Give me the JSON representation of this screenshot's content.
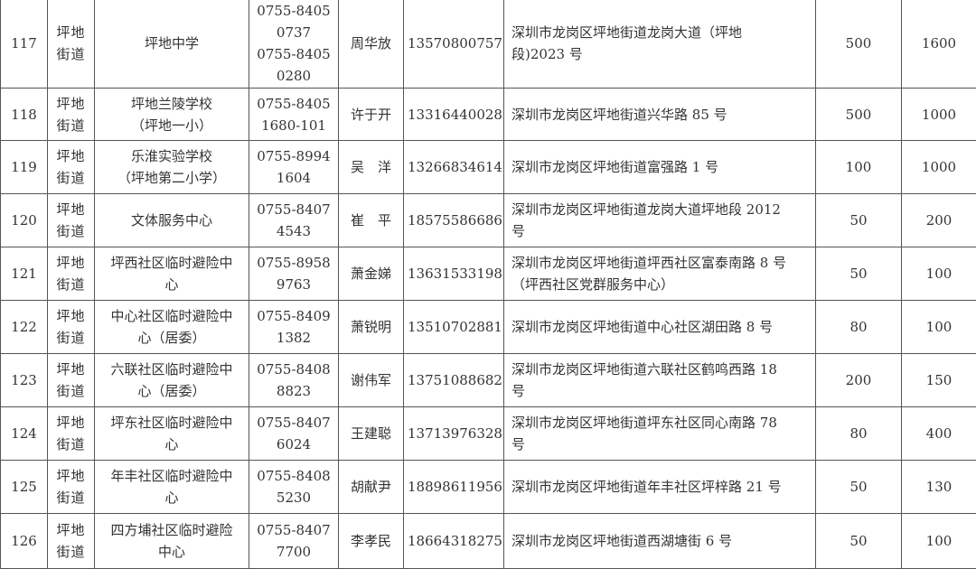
{
  "rows": [
    {
      "no": "117",
      "street": [
        "坪地",
        "街道"
      ],
      "name": [
        "坪地中学"
      ],
      "phone": [
        "0755-8405",
        "0737",
        "0755-8405",
        "0280"
      ],
      "person": "周华放",
      "mobile": "13570800757",
      "address": [
        "深圳市龙岗区坪地街道龙岗大道（坪地",
        "段)2023 号"
      ],
      "cap1": "500",
      "cap2": "1600"
    },
    {
      "no": "118",
      "street": [
        "坪地",
        "街道"
      ],
      "name": [
        "坪地兰陵学校",
        "（坪地一小）"
      ],
      "phone": [
        "0755-8405",
        "1680-101"
      ],
      "person": "许于开",
      "mobile": "13316440028",
      "address": [
        "深圳市龙岗区坪地街道兴华路 85 号"
      ],
      "cap1": "500",
      "cap2": "1000"
    },
    {
      "no": "119",
      "street": [
        "坪地",
        "街道"
      ],
      "name": [
        "乐淮实验学校",
        "（坪地第二小学）"
      ],
      "phone": [
        "0755-8994",
        "1604"
      ],
      "person": "吴　洋",
      "mobile": "13266834614",
      "address": [
        "深圳市龙岗区坪地街道富强路 1 号"
      ],
      "cap1": "100",
      "cap2": "1000"
    },
    {
      "no": "120",
      "street": [
        "坪地",
        "街道"
      ],
      "name": [
        "文体服务中心"
      ],
      "phone": [
        "0755-8407",
        "4543"
      ],
      "person": "崔　平",
      "mobile": "18575586686",
      "address": [
        "深圳市龙岗区坪地街道龙岗大道坪地段 2012",
        "号"
      ],
      "cap1": "50",
      "cap2": "200"
    },
    {
      "no": "121",
      "street": [
        "坪地",
        "街道"
      ],
      "name": [
        "坪西社区临时避险中",
        "心"
      ],
      "phone": [
        "0755-8958",
        "9763"
      ],
      "person": "萧金娣",
      "mobile": "13631533198",
      "address": [
        "深圳市龙岗区坪地街道坪西社区富泰南路 8 号",
        "（坪西社区党群服务中心）"
      ],
      "cap1": "50",
      "cap2": "100"
    },
    {
      "no": "122",
      "street": [
        "坪地",
        "街道"
      ],
      "name": [
        "中心社区临时避险中",
        "心（居委）"
      ],
      "phone": [
        "0755-8409",
        "1382"
      ],
      "person": "萧锐明",
      "mobile": "13510702881",
      "address": [
        "深圳市龙岗区坪地街道中心社区湖田路 8 号"
      ],
      "cap1": "80",
      "cap2": "100"
    },
    {
      "no": "123",
      "street": [
        "坪地",
        "街道"
      ],
      "name": [
        "六联社区临时避险中",
        "心（居委）"
      ],
      "phone": [
        "0755-8408",
        "8823"
      ],
      "person": "谢伟军",
      "mobile": "13751088682",
      "address": [
        "深圳市龙岗区坪地街道六联社区鹤鸣西路 18",
        "号"
      ],
      "cap1": "200",
      "cap2": "150"
    },
    {
      "no": "124",
      "street": [
        "坪地",
        "街道"
      ],
      "name": [
        "坪东社区临时避险中",
        "心"
      ],
      "phone": [
        "0755-8407",
        "6024"
      ],
      "person": "王建聪",
      "mobile": "13713976328",
      "address": [
        "深圳市龙岗区坪地街道坪东社区同心南路 78",
        "号"
      ],
      "cap1": "80",
      "cap2": "400"
    },
    {
      "no": "125",
      "street": [
        "坪地",
        "街道"
      ],
      "name": [
        "年丰社区临时避险中",
        "心"
      ],
      "phone": [
        "0755-8408",
        "5230"
      ],
      "person": "胡献尹",
      "mobile": "18898611956",
      "address": [
        "深圳市龙岗区坪地街道年丰社区坪梓路 21 号"
      ],
      "cap1": "50",
      "cap2": "130"
    },
    {
      "no": "126",
      "street": [
        "坪地",
        "街道"
      ],
      "name": [
        "四方埔社区临时避险",
        "中心"
      ],
      "phone": [
        "0755-8407",
        "7700"
      ],
      "person": "李孝民",
      "mobile": "18664318275",
      "address": [
        "深圳市龙岗区坪地街道西湖塘街 6 号"
      ],
      "cap1": "50",
      "cap2": "100"
    }
  ]
}
